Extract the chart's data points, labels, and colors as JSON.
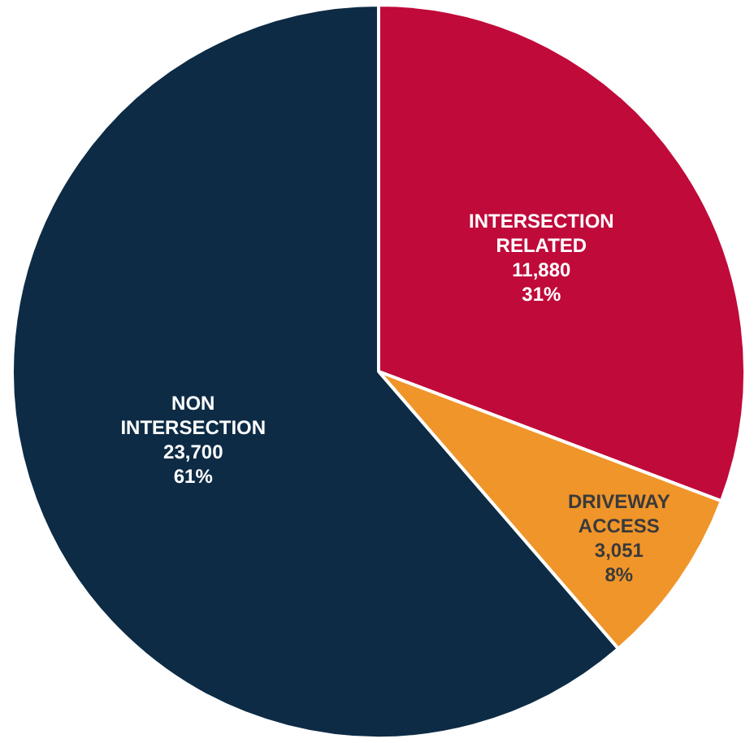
{
  "chart_data": {
    "type": "pie",
    "categories": [
      "INTERSECTION RELATED",
      "DRIVEWAY ACCESS",
      "NON INTERSECTION"
    ],
    "values": [
      11880,
      3051,
      23700
    ],
    "colors": [
      "#c00a3a",
      "#f0952a",
      "#0d2b45"
    ],
    "value_labels": [
      "11,880\n31%",
      "3,051\n8%",
      "23,700\n61%"
    ],
    "legend": false
  }
}
